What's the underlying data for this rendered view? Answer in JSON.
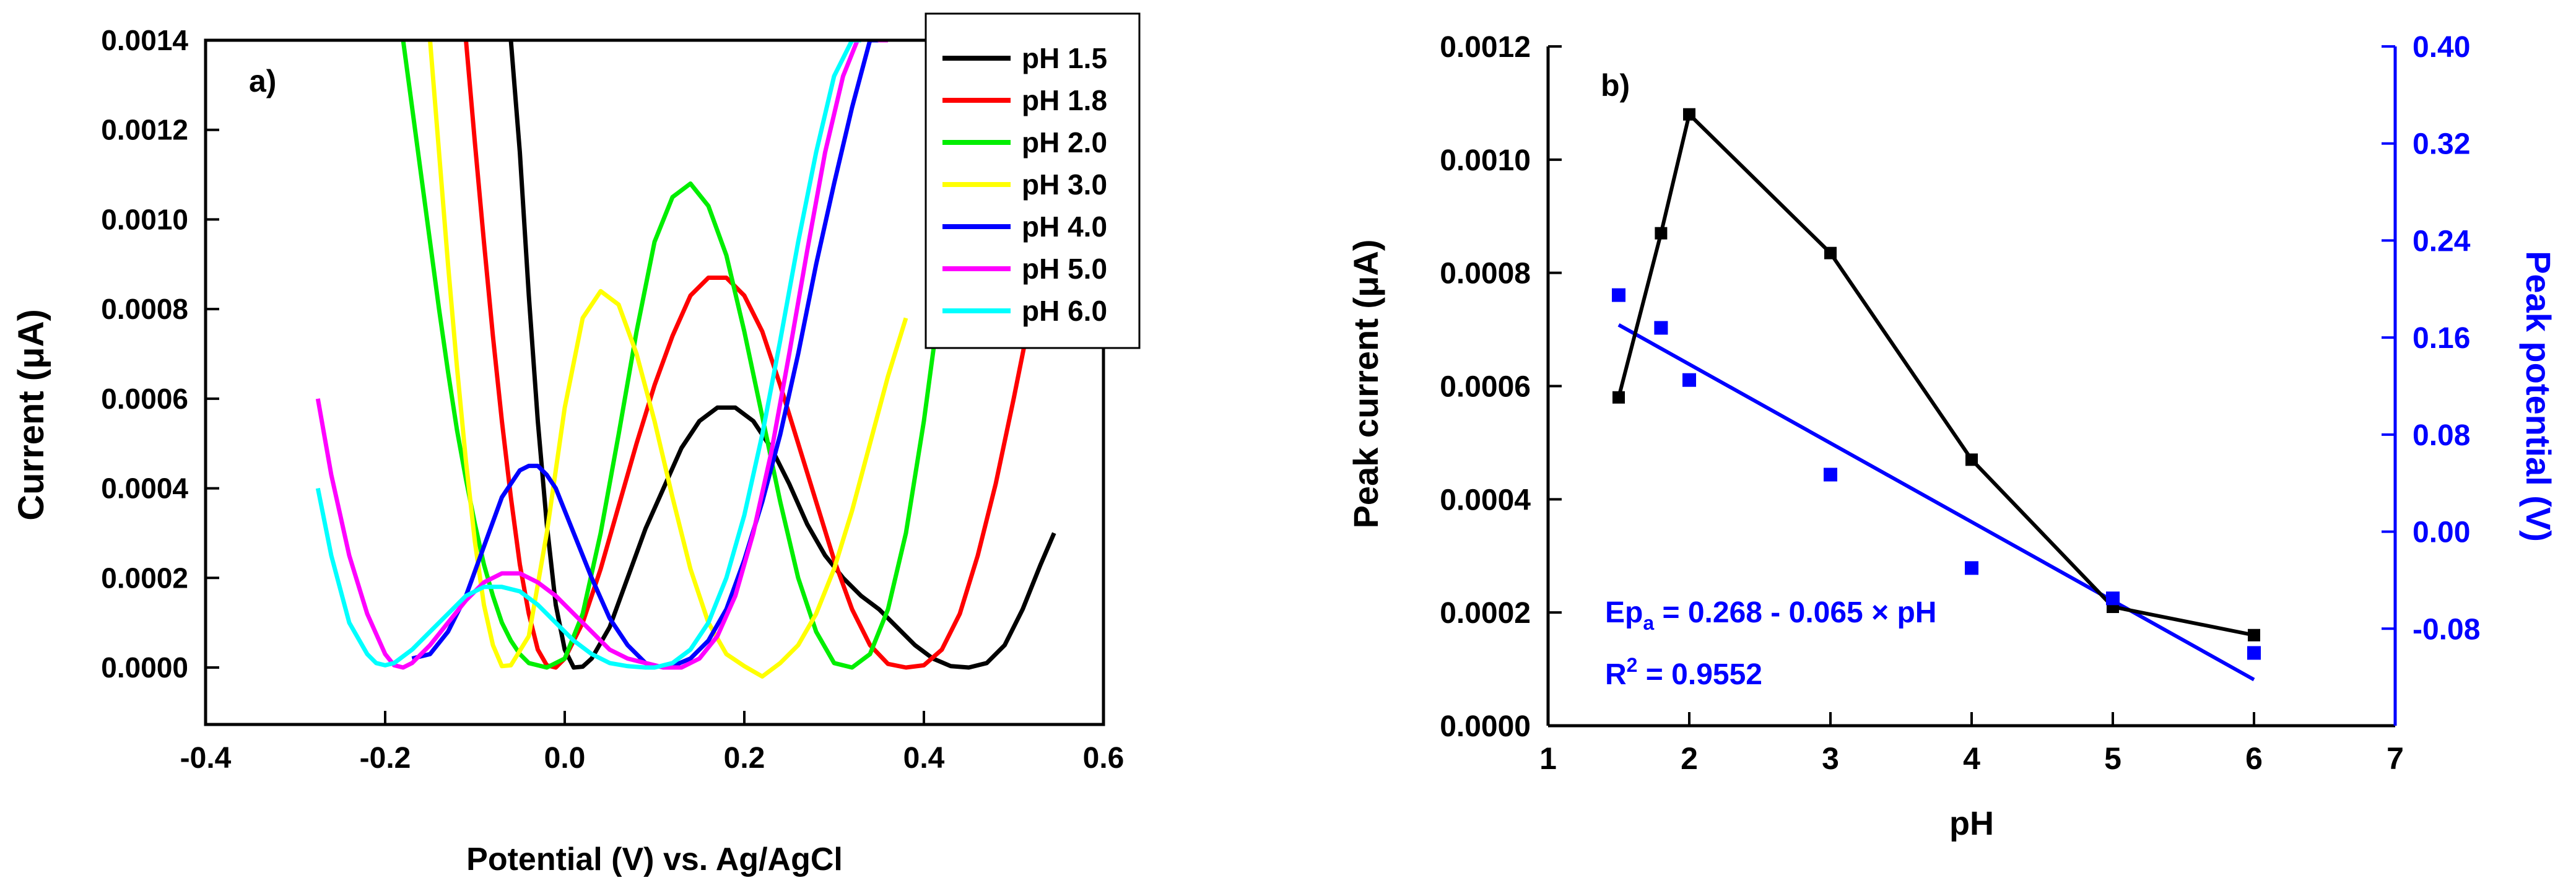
{
  "chart_data": [
    {
      "type": "line",
      "panel_label": "a)",
      "xlabel": "Potential (V) vs. Ag/AgCl",
      "ylabel": "Current (μA)",
      "xlim": [
        -0.4,
        0.6
      ],
      "ylim": [
        -5e-05,
        0.0014
      ],
      "xticks": [
        "-0.4",
        "-0.2",
        "0.0",
        "0.2",
        "0.4",
        "0.6"
      ],
      "yticks": [
        "0.0000",
        "0.0002",
        "0.0004",
        "0.0006",
        "0.0008",
        "0.0010",
        "0.0012",
        "0.0014"
      ],
      "xtick_values": [
        -0.4,
        -0.2,
        0.0,
        0.2,
        0.4,
        0.6
      ],
      "ytick_values": [
        0,
        0.0002,
        0.0004,
        0.0006,
        0.0008,
        0.001,
        0.0012,
        0.0014
      ],
      "legend_position": "top-right",
      "series": [
        {
          "name": "pH 1.5",
          "color": "#000000",
          "x": [
            -0.06,
            -0.05,
            -0.04,
            -0.03,
            -0.02,
            -0.01,
            0.0,
            0.01,
            0.02,
            0.03,
            0.05,
            0.07,
            0.09,
            0.11,
            0.13,
            0.15,
            0.17,
            0.19,
            0.21,
            0.23,
            0.25,
            0.27,
            0.29,
            0.31,
            0.33,
            0.35,
            0.37,
            0.39,
            0.41,
            0.43,
            0.45,
            0.47,
            0.49,
            0.51,
            0.53,
            0.545
          ],
          "y": [
            0.0014,
            0.00115,
            0.00083,
            0.00055,
            0.00032,
            0.00014,
            4e-05,
            0.0,
            2e-06,
            2e-05,
            9e-05,
            0.0002,
            0.00031,
            0.0004,
            0.00049,
            0.00055,
            0.00058,
            0.00058,
            0.00055,
            0.00049,
            0.00041,
            0.00032,
            0.00025,
            0.0002,
            0.00016,
            0.00013,
            9e-05,
            5e-05,
            2e-05,
            3e-06,
            0.0,
            1e-05,
            5e-05,
            0.00013,
            0.00023,
            0.0003
          ]
        },
        {
          "name": "pH 1.8",
          "color": "#ff0000",
          "x": [
            -0.11,
            -0.1,
            -0.09,
            -0.08,
            -0.07,
            -0.06,
            -0.05,
            -0.04,
            -0.03,
            -0.02,
            -0.01,
            0.0,
            0.02,
            0.04,
            0.06,
            0.08,
            0.1,
            0.12,
            0.14,
            0.16,
            0.18,
            0.2,
            0.22,
            0.24,
            0.26,
            0.28,
            0.3,
            0.32,
            0.34,
            0.36,
            0.38,
            0.4,
            0.42,
            0.44,
            0.46,
            0.48,
            0.5,
            0.52
          ],
          "y": [
            0.0014,
            0.00117,
            0.00095,
            0.00074,
            0.00055,
            0.00038,
            0.00023,
            0.00012,
            4e-05,
            5e-06,
            0.0,
            2e-05,
            0.0001,
            0.00022,
            0.00036,
            0.0005,
            0.00063,
            0.00074,
            0.00083,
            0.00087,
            0.00087,
            0.00083,
            0.00075,
            0.00063,
            0.0005,
            0.00037,
            0.00024,
            0.00013,
            5e-05,
            8e-06,
            0.0,
            5e-06,
            4e-05,
            0.00012,
            0.00025,
            0.00041,
            0.0006,
            0.0008
          ]
        },
        {
          "name": "pH 2.0",
          "color": "#00ee00",
          "x": [
            -0.18,
            -0.17,
            -0.16,
            -0.15,
            -0.14,
            -0.13,
            -0.12,
            -0.11,
            -0.1,
            -0.09,
            -0.08,
            -0.07,
            -0.06,
            -0.05,
            -0.04,
            -0.02,
            0.0,
            0.02,
            0.04,
            0.06,
            0.08,
            0.1,
            0.12,
            0.14,
            0.16,
            0.18,
            0.2,
            0.22,
            0.24,
            0.26,
            0.28,
            0.3,
            0.32,
            0.34,
            0.36,
            0.38,
            0.4,
            0.42
          ],
          "y": [
            0.0014,
            0.00125,
            0.0011,
            0.00095,
            0.0008,
            0.00066,
            0.00053,
            0.00042,
            0.00032,
            0.00023,
            0.00016,
            0.0001,
            6e-05,
            3e-05,
            1e-05,
            0.0,
            2e-05,
            0.00012,
            0.0003,
            0.00052,
            0.00075,
            0.00095,
            0.00105,
            0.00108,
            0.00103,
            0.00092,
            0.00075,
            0.00056,
            0.00037,
            0.0002,
            8e-05,
            1e-05,
            0.0,
            3e-05,
            0.00013,
            0.0003,
            0.00055,
            0.00085
          ]
        },
        {
          "name": "pH 3.0",
          "color": "#ffff00",
          "x": [
            -0.15,
            -0.14,
            -0.13,
            -0.12,
            -0.11,
            -0.1,
            -0.09,
            -0.08,
            -0.07,
            -0.06,
            -0.04,
            -0.02,
            0.0,
            0.02,
            0.04,
            0.06,
            0.08,
            0.1,
            0.12,
            0.14,
            0.16,
            0.18,
            0.2,
            0.22,
            0.24,
            0.26,
            0.28,
            0.3,
            0.32,
            0.34,
            0.36,
            0.38
          ],
          "y": [
            0.0014,
            0.00115,
            0.0009,
            0.00067,
            0.00046,
            0.00028,
            0.00014,
            5e-05,
            3e-06,
            5e-06,
            7e-05,
            0.0003,
            0.00058,
            0.00078,
            0.00084,
            0.00081,
            0.0007,
            0.00055,
            0.00038,
            0.00022,
            0.0001,
            3e-05,
            3e-06,
            -2e-05,
            1e-05,
            5e-05,
            0.00012,
            0.00022,
            0.00035,
            0.0005,
            0.00065,
            0.00078
          ]
        },
        {
          "name": "pH 4.0",
          "color": "#0000ff",
          "x": [
            -0.17,
            -0.15,
            -0.13,
            -0.11,
            -0.09,
            -0.07,
            -0.05,
            -0.04,
            -0.03,
            -0.02,
            -0.01,
            0.01,
            0.03,
            0.05,
            0.07,
            0.09,
            0.11,
            0.12,
            0.14,
            0.16,
            0.18,
            0.2,
            0.22,
            0.24,
            0.26,
            0.28,
            0.3,
            0.32,
            0.34,
            0.35
          ],
          "y": [
            2e-05,
            3e-05,
            8e-05,
            0.00016,
            0.00027,
            0.00038,
            0.00044,
            0.00045,
            0.00045,
            0.00043,
            0.0004,
            0.0003,
            0.0002,
            0.00011,
            5e-05,
            1e-05,
            0.0,
            3e-06,
            2e-05,
            6e-05,
            0.00013,
            0.00024,
            0.00037,
            0.00052,
            0.0007,
            0.0009,
            0.00108,
            0.00125,
            0.0014,
            0.0014
          ]
        },
        {
          "name": "pH 5.0",
          "color": "#ff00ff",
          "x": [
            -0.275,
            -0.26,
            -0.24,
            -0.22,
            -0.2,
            -0.19,
            -0.18,
            -0.17,
            -0.15,
            -0.13,
            -0.11,
            -0.09,
            -0.07,
            -0.05,
            -0.03,
            -0.01,
            0.01,
            0.03,
            0.05,
            0.07,
            0.09,
            0.11,
            0.13,
            0.15,
            0.17,
            0.19,
            0.21,
            0.23,
            0.25,
            0.27,
            0.29,
            0.31,
            0.33,
            0.35,
            0.36
          ],
          "y": [
            0.0006,
            0.00043,
            0.00025,
            0.00012,
            3e-05,
            5e-06,
            0.0,
            1e-05,
            5e-05,
            0.0001,
            0.00015,
            0.00019,
            0.00021,
            0.00021,
            0.00019,
            0.00016,
            0.00012,
            8e-05,
            4e-05,
            2e-05,
            1e-05,
            0.0,
            0.0,
            2e-05,
            7e-05,
            0.00016,
            0.0003,
            0.00048,
            0.0007,
            0.00093,
            0.00115,
            0.00132,
            0.00142,
            0.0014,
            0.0014
          ]
        },
        {
          "name": "pH 6.0",
          "color": "#00ffff",
          "x": [
            -0.275,
            -0.26,
            -0.24,
            -0.22,
            -0.21,
            -0.2,
            -0.19,
            -0.17,
            -0.15,
            -0.13,
            -0.11,
            -0.09,
            -0.07,
            -0.05,
            -0.03,
            -0.01,
            0.01,
            0.03,
            0.05,
            0.07,
            0.09,
            0.1,
            0.12,
            0.14,
            0.16,
            0.18,
            0.2,
            0.22,
            0.24,
            0.26,
            0.28,
            0.3,
            0.32,
            0.33
          ],
          "y": [
            0.0004,
            0.00025,
            0.0001,
            3e-05,
            1e-05,
            5e-06,
            1e-05,
            4e-05,
            8e-05,
            0.00012,
            0.00016,
            0.00018,
            0.00018,
            0.00017,
            0.00014,
            0.0001,
            6e-05,
            3e-05,
            1e-05,
            3e-06,
            0.0,
            0.0,
            1e-05,
            4e-05,
            0.0001,
            0.0002,
            0.00034,
            0.00052,
            0.00073,
            0.00095,
            0.00115,
            0.00132,
            0.0014,
            0.0014
          ]
        }
      ]
    },
    {
      "type": "line",
      "panel_label": "b)",
      "xlabel": "pH",
      "ylabel": "Peak current (μA)",
      "ylabel_right": "Peak potential (V)",
      "xlim": [
        1,
        7
      ],
      "ylim": [
        0,
        0.0012
      ],
      "ylim_right": [
        -0.16,
        0.4
      ],
      "xticks": [
        "1",
        "2",
        "3",
        "4",
        "5",
        "6",
        "7"
      ],
      "yticks": [
        "0.0000",
        "0.0002",
        "0.0004",
        "0.0006",
        "0.0008",
        "0.0010",
        "0.0012"
      ],
      "yticks_right": [
        "-0.08",
        "0.00",
        "0.08",
        "0.16",
        "0.24",
        "0.32",
        "0.40"
      ],
      "xtick_values": [
        1,
        2,
        3,
        4,
        5,
        6,
        7
      ],
      "ytick_values": [
        0,
        0.0002,
        0.0004,
        0.0006,
        0.0008,
        0.001,
        0.0012
      ],
      "ytick_values_right": [
        -0.08,
        0.0,
        0.08,
        0.16,
        0.24,
        0.32,
        0.4
      ],
      "series": [
        {
          "axis": "left",
          "style": "line+square",
          "color": "#000000",
          "x": [
            1.5,
            1.8,
            2.0,
            3.0,
            4.0,
            5.0,
            6.0
          ],
          "y": [
            0.00058,
            0.00087,
            0.00108,
            0.000835,
            0.00047,
            0.00021,
            0.00016
          ]
        },
        {
          "axis": "right",
          "style": "square",
          "color": "#0000ff",
          "x": [
            1.5,
            1.8,
            2.0,
            3.0,
            4.0,
            5.0,
            6.0
          ],
          "y": [
            0.195,
            0.168,
            0.125,
            0.047,
            -0.03,
            -0.055,
            -0.1
          ]
        },
        {
          "axis": "right",
          "style": "line",
          "color": "#0000ff",
          "x": [
            1.5,
            6.0
          ],
          "y": [
            0.1705,
            -0.122
          ]
        }
      ],
      "annotation": {
        "eq_base": "Ep",
        "eq_sub": "a",
        "eq_rest": " = 0.268 - 0.065 × pH",
        "r2_base": "R",
        "r2_sup": "2",
        "r2_rest": " = 0.9552",
        "color": "#0000ff"
      }
    }
  ]
}
